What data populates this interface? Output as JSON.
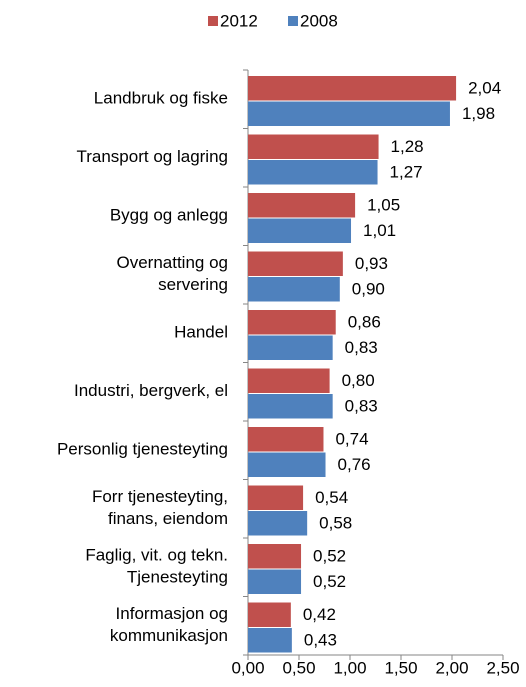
{
  "chart_data": {
    "type": "bar",
    "orientation": "horizontal",
    "categories": [
      [
        "Landbruk og fiske"
      ],
      [
        "Transport og lagring"
      ],
      [
        "Bygg og anlegg"
      ],
      [
        "Overnatting og",
        "servering"
      ],
      [
        "Handel"
      ],
      [
        "Industri, bergverk, el"
      ],
      [
        "Personlig tjenesteyting"
      ],
      [
        "Forr tjenesteyting,",
        "finans, eiendom"
      ],
      [
        "Faglig, vit. og tekn.",
        "Tjenesteyting"
      ],
      [
        "Informasjon og",
        "kommunikasjon"
      ]
    ],
    "series": [
      {
        "name": "2012",
        "color": "#c0504d",
        "values": [
          2.04,
          1.28,
          1.05,
          0.93,
          0.86,
          0.8,
          0.74,
          0.54,
          0.52,
          0.42
        ],
        "value_labels": [
          "2,04",
          "1,28",
          "1,05",
          "0,93",
          "0,86",
          "0,80",
          "0,74",
          "0,54",
          "0,52",
          "0,42"
        ]
      },
      {
        "name": "2008",
        "color": "#4f81bd",
        "values": [
          1.98,
          1.27,
          1.01,
          0.9,
          0.83,
          0.83,
          0.76,
          0.58,
          0.52,
          0.43
        ],
        "value_labels": [
          "1,98",
          "1,27",
          "1,01",
          "0,90",
          "0,83",
          "0,83",
          "0,76",
          "0,58",
          "0,52",
          "0,43"
        ]
      }
    ],
    "xlim": [
      0,
      2.5
    ],
    "xticks": [
      {
        "value": 0,
        "label": "0,00"
      },
      {
        "value": 0.5,
        "label": "0,50"
      },
      {
        "value": 1,
        "label": "1,00"
      },
      {
        "value": 1.5,
        "label": "1,50"
      },
      {
        "value": 2,
        "label": "2,00"
      },
      {
        "value": 2.5,
        "label": "2,50"
      }
    ],
    "legend": "top"
  }
}
